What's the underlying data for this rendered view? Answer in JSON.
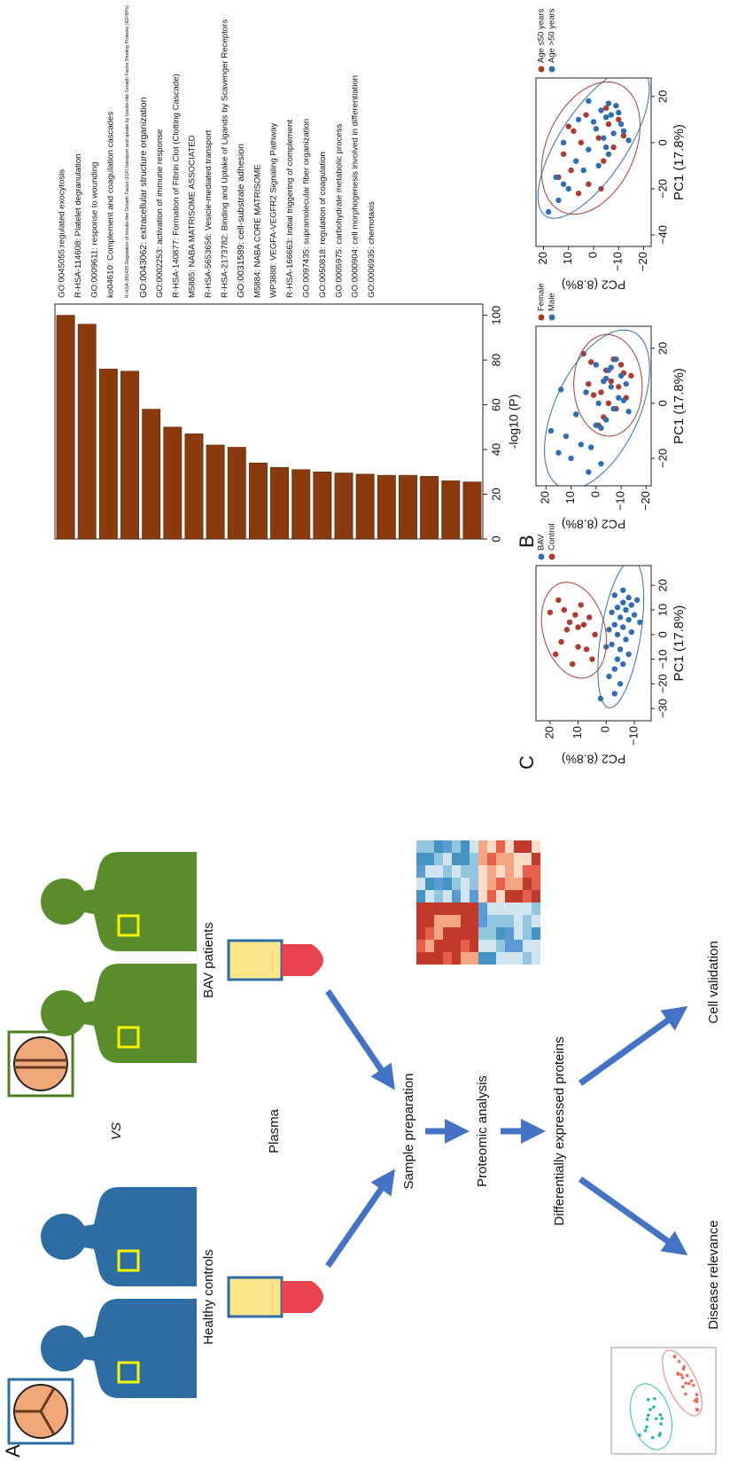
{
  "panel_labels": [
    "A",
    "B",
    "C"
  ],
  "panel_a": {
    "groups": [
      "Healthy controls",
      "BAV patients"
    ],
    "vs": "VS",
    "sample": "Plasma",
    "steps": [
      "Sample preparation",
      "Proteomic analysis",
      "Differentially expressed proteins"
    ],
    "outcomes": [
      "Disease relevance",
      "Cell validation"
    ]
  },
  "chart_data": [
    {
      "type": "bar",
      "orientation": "horizontal",
      "categories": [
        "GO:0045055:regulated exocytosis",
        "R-HSA-114608: Platelet degranulation",
        "GO:0009611: response to wounding",
        "ko04610: Complement and coagulation cascades",
        "R-HSA-381426:Regulation of Insulin-like Growth Factor (IGF) transport and uptake by Insulin-like Growth Factor Binding Proteins (IGFBPs)",
        "GO:0043062: extracellular structure organization",
        "GO:0002253: activation of immune response",
        "R-HSA-140877: Formation of Fibrin Clot (Clotting Cascade)",
        "M5885: NABA MATRISOME ASSOCIATED",
        "R-HSA-5653656: Vesicle-mediated transport",
        "R-HSA-2173782: Binding and Uptake of Ligands by Scavenger Receptors",
        "GO:0031589: cell-substrate adhesion",
        "M5884: NABA CORE MATRISOME",
        "WP3888: VEGFA-VEGFR2 Signaling Pathway",
        "R-HSA-166663: Initial triggering of complement",
        "GO:0097435: supramolecular fiber organization",
        "GO:0050818: regulation of coagulation",
        "GO:0005975: carbohydrate metabolic process",
        "GO:0000904: cell morphogenesis involved in differentiation",
        "GO:0006935: chemotaxis"
      ],
      "values": [
        100,
        96,
        76,
        75,
        58,
        50,
        47,
        42,
        41,
        34,
        32,
        31,
        30,
        29.5,
        29,
        28.5,
        28.5,
        28,
        26,
        25.5
      ],
      "color": "#8b3a0e",
      "label_colors": [
        "#111111",
        "#111111",
        "#111111",
        "#111111",
        "#d62728",
        "#d62728",
        "#111111",
        "#111111",
        "#111111",
        "#111111",
        "#111111",
        "#d62728",
        "#111111",
        "#111111",
        "#111111",
        "#111111",
        "#111111",
        "#111111",
        "#111111",
        "#111111"
      ],
      "xlim": [
        0,
        105
      ],
      "xticks": [
        0,
        20,
        40,
        60,
        80,
        100
      ],
      "xlabel": "-log10 (P)"
    },
    {
      "type": "scatter",
      "xlabel": "PC1 (17.8%)",
      "ylabel": "PC2 (8.8%)",
      "xlim": [
        -35,
        28
      ],
      "ylim": [
        -16,
        25
      ],
      "xticks": [
        {
          "value": -30,
          "label": "−30"
        },
        {
          "value": -20,
          "label": "−20"
        },
        {
          "value": -10,
          "label": "−10"
        },
        0,
        10,
        20
      ],
      "yticks": [
        {
          "value": -10,
          "label": "−10"
        },
        0,
        10,
        20
      ],
      "series": [
        {
          "name": "BAV",
          "color": "#2f6eb5",
          "x": [
            -26,
            -24,
            -20,
            -17,
            -14,
            -12,
            -10,
            -8,
            -6,
            -4,
            -2,
            0,
            1,
            3,
            4,
            6,
            7,
            8,
            10,
            11,
            12,
            13,
            14,
            15,
            16,
            18,
            -5,
            2,
            9,
            5
          ],
          "y": [
            2,
            -3,
            -5,
            -1,
            -3,
            -6,
            -4,
            -8,
            -5,
            -2,
            -7,
            -4,
            -9,
            -6,
            -3,
            -8,
            -5,
            -10,
            -7,
            -4,
            -9,
            -6,
            -11,
            -8,
            -3,
            -6,
            0,
            -1,
            -2,
            -12
          ]
        },
        {
          "name": "Control",
          "color": "#b03a2e",
          "x": [
            -12,
            -10,
            -8,
            -5,
            -3,
            0,
            2,
            4,
            5,
            7,
            8,
            10,
            12,
            14,
            -6,
            3,
            9
          ],
          "y": [
            12,
            5,
            18,
            10,
            16,
            4,
            14,
            8,
            13,
            6,
            11,
            15,
            9,
            17,
            7,
            10,
            20
          ]
        }
      ]
    },
    {
      "type": "scatter",
      "xlabel": "PC1 (17.8%)",
      "ylabel": "PC2 (8.8%)",
      "xlim": [
        -30,
        28
      ],
      "ylim": [
        -22,
        24
      ],
      "xticks": [
        {
          "value": -20,
          "label": "−20"
        },
        0,
        20
      ],
      "yticks": [
        {
          "value": -20,
          "label": "−20"
        },
        {
          "value": -10,
          "label": "−10"
        },
        0,
        10,
        20
      ],
      "series": [
        {
          "name": "Female",
          "color": "#b03a2e",
          "x": [
            -5,
            -2,
            0,
            2,
            4,
            6,
            8,
            10,
            12,
            14,
            16,
            18,
            3,
            -8,
            7,
            11,
            15
          ],
          "y": [
            -3,
            -8,
            -5,
            -12,
            -2,
            -9,
            -6,
            -14,
            -4,
            -10,
            -7,
            5,
            1,
            -1,
            3,
            -11,
            2
          ]
        },
        {
          "name": "Male",
          "color": "#2f6eb5",
          "x": [
            -25,
            -22,
            -20,
            -18,
            -15,
            -12,
            -10,
            -8,
            -6,
            -4,
            -2,
            0,
            2,
            4,
            6,
            8,
            10,
            12,
            14,
            16,
            -16,
            -9,
            1,
            5,
            9,
            13,
            -3,
            7
          ],
          "y": [
            3,
            -2,
            10,
            15,
            6,
            12,
            18,
            0,
            -4,
            8,
            -7,
            -1,
            -9,
            4,
            -6,
            -3,
            -10,
            -5,
            0,
            -8,
            2,
            -2,
            -11,
            14,
            -4,
            -6,
            -13,
            -12
          ]
        }
      ]
    },
    {
      "type": "scatter",
      "xlabel": "PC1 (17.8%)",
      "ylabel": "PC2 (8.8%)",
      "xlim": [
        -45,
        28
      ],
      "ylim": [
        -23,
        23
      ],
      "xticks": [
        {
          "value": -40,
          "label": "−40"
        },
        {
          "value": -20,
          "label": "−20"
        },
        0,
        20
      ],
      "yticks": [
        {
          "value": -20,
          "label": "−20"
        },
        {
          "value": -10,
          "label": "−10"
        },
        0,
        10,
        20
      ],
      "series": [
        {
          "name": "Age ≤50 years",
          "color": "#b03a2e",
          "x": [
            -22,
            -18,
            -15,
            -12,
            -8,
            -5,
            -2,
            0,
            2,
            5,
            8,
            10,
            12,
            15,
            -20,
            3,
            7
          ],
          "y": [
            6,
            2,
            14,
            9,
            -4,
            12,
            -8,
            5,
            -2,
            8,
            -6,
            -10,
            3,
            -5,
            -3,
            -12,
            10
          ]
        },
        {
          "name": "Age >50 years",
          "color": "#2f6eb5",
          "x": [
            -30,
            -25,
            -20,
            -15,
            -12,
            -10,
            -8,
            -5,
            -3,
            0,
            2,
            4,
            6,
            8,
            10,
            12,
            14,
            16,
            18,
            -2,
            5,
            9,
            -18,
            1,
            11,
            13,
            17
          ],
          "y": [
            18,
            14,
            10,
            15,
            4,
            -2,
            7,
            -6,
            2,
            12,
            -4,
            -8,
            -1,
            -11,
            6,
            -7,
            -3,
            -9,
            2,
            -5,
            -12,
            0,
            12,
            -14,
            -5,
            -10,
            -6
          ]
        }
      ]
    }
  ]
}
